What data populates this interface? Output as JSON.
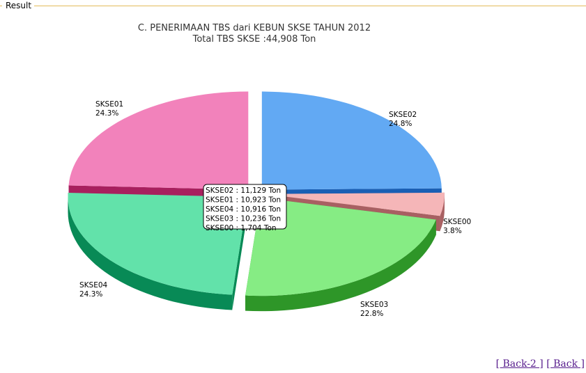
{
  "panel": {
    "legend": "Result"
  },
  "chart_data": {
    "type": "pie",
    "title": "C. PENERIMAAN TBS dari KEBUN SKSE TAHUN 2012",
    "subtitle": "Total TBS SKSE :44,908 Ton",
    "slices": [
      {
        "name": "SKSE02",
        "value": 11129,
        "percent": "24.8%",
        "top_color": "#62a9f3",
        "side_color": "#1a5fb4"
      },
      {
        "name": "SKSE00",
        "value": 1704,
        "percent": "3.8%",
        "top_color": "#f5b6b8",
        "side_color": "#a86062"
      },
      {
        "name": "SKSE03",
        "value": 10236,
        "percent": "22.8%",
        "top_color": "#86ec84",
        "side_color": "#2e9628"
      },
      {
        "name": "SKSE04",
        "value": 10916,
        "percent": "24.3%",
        "top_color": "#62e2aa",
        "side_color": "#088a56"
      },
      {
        "name": "SKSE01",
        "value": 10923,
        "percent": "24.3%",
        "top_color": "#f282bb",
        "side_color": "#a8205e"
      }
    ],
    "tooltip": [
      "SKSE02 : 11,129 Ton",
      "SKSE01 : 10,923 Ton",
      "SKSE04 : 10,916 Ton",
      "SKSE03 : 10,236 Ton",
      "SKSE00 : 1,704 Ton"
    ]
  },
  "nav": {
    "back2": "[ Back-2 ]",
    "back": "[ Back ]"
  }
}
